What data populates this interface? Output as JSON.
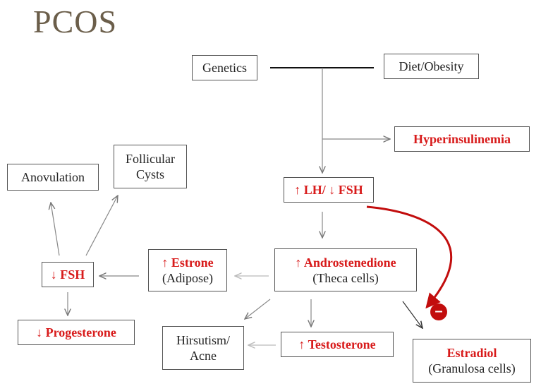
{
  "title": "PCOS",
  "nodes": {
    "genetics": "Genetics",
    "diet_obesity": "Diet/Obesity",
    "hyperinsulinemia": "Hyperinsulinemia",
    "lh_fsh": "↑ LH/ ↓ FSH",
    "androstenedione": "↑ Androstenedione",
    "androstenedione_sub": "(Theca cells)",
    "estrone": "↑ Estrone",
    "estrone_sub": "(Adipose)",
    "fsh_low": "↓ FSH",
    "progesterone": "↓ Progesterone",
    "anovulation": "Anovulation",
    "follicular_cysts_line1": "Follicular",
    "follicular_cysts_line2": "Cysts",
    "hirsutism_line1": "Hirsutism/",
    "hirsutism_line2": "Acne",
    "testosterone": "↑ Testosterone",
    "estradiol": "Estradiol",
    "estradiol_sub": "(Granulosa cells)",
    "inhibit_symbol": "–"
  },
  "colors": {
    "title": "#6b5e4a",
    "highlight_red": "#d81b1b",
    "inhibit_arrow": "#c20d0d",
    "line_gray": "#888888"
  }
}
